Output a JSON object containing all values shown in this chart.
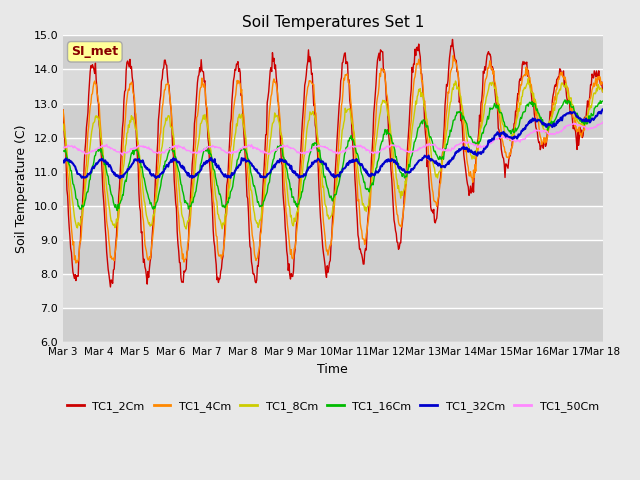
{
  "title": "Soil Temperatures Set 1",
  "xlabel": "Time",
  "ylabel": "Soil Temperature (C)",
  "ylim": [
    6.0,
    15.0
  ],
  "yticks": [
    6.0,
    7.0,
    8.0,
    9.0,
    10.0,
    11.0,
    12.0,
    13.0,
    14.0,
    15.0
  ],
  "bg_color": "#e8e8e8",
  "plot_bg_color": "#d4d4d4",
  "grid_color": "#ffffff",
  "annotation_text": "SI_met",
  "annotation_bg": "#ffff99",
  "annotation_border": "#aaaaaa",
  "series_colors": {
    "TC1_2Cm": "#cc0000",
    "TC1_4Cm": "#ff8800",
    "TC1_8Cm": "#cccc00",
    "TC1_16Cm": "#00bb00",
    "TC1_32Cm": "#0000cc",
    "TC1_50Cm": "#ff88ff"
  },
  "x_tick_labels": [
    "Mar 3",
    "Mar 4",
    "Mar 5",
    "Mar 6",
    "Mar 7",
    "Mar 8",
    "Mar 9",
    "Mar 10",
    "Mar 11",
    "Mar 12",
    "Mar 13",
    "Mar 14",
    "Mar 15",
    "Mar 16",
    "Mar 17",
    "Mar 18"
  ]
}
